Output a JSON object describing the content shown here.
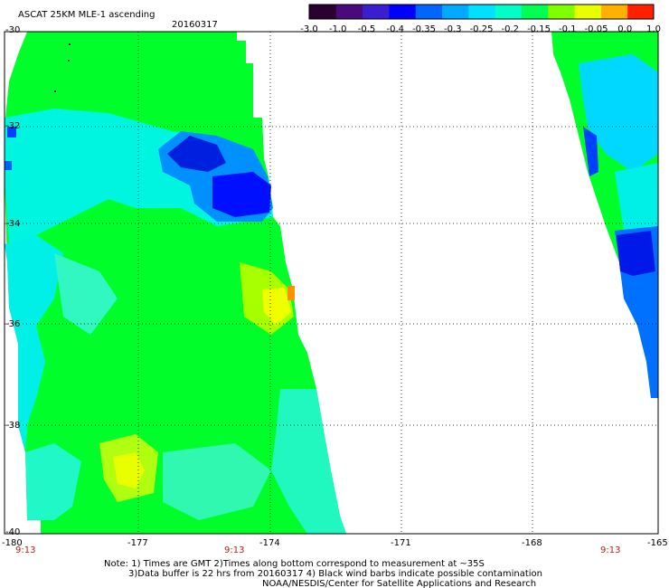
{
  "header": {
    "title": "ASCAT 25KM MLE-1 ascending",
    "date": "20160317"
  },
  "colorbar": {
    "tick_labels": [
      "-3.0",
      "-1.0",
      "-0.5",
      "-0.4",
      "-0.35",
      "-0.3",
      "-0.25",
      "-0.2",
      "-0.15",
      "-0.1",
      "-0.05",
      "0.0",
      "1.0"
    ],
    "colors": [
      "#2a0030",
      "#4b0a7a",
      "#3a1fd0",
      "#0000ff",
      "#0066ff",
      "#00aaff",
      "#00e0ff",
      "#00ffc8",
      "#00ff50",
      "#80ff00",
      "#e8ff00",
      "#ffb000",
      "#ff2000"
    ]
  },
  "axes": {
    "lat_labels": [
      "-30",
      "-32",
      "-34",
      "-36",
      "-38",
      "-40"
    ],
    "lon_labels": [
      "-180",
      "-177",
      "-174",
      "-171",
      "-168",
      "-165"
    ]
  },
  "time_labels": [
    "9:13",
    "9:13",
    "9:13"
  ],
  "notes": {
    "line1": "Note: 1) Times are GMT 2)Times along bottom correspond to measurement at ~35S",
    "line2": "3)Data buffer is 22 hrs from 20160317 4) Black wind barbs indicate possible contamination",
    "line3": "NOAA/NESDIS/Center for Satellite Applications and Research"
  },
  "palette": {
    "green": "#00ff2a",
    "light_green": "#40ff70",
    "yellow_green": "#a0ff00",
    "cyan": "#00ffe0",
    "light_blue": "#00c8ff",
    "mid_blue": "#0080ff",
    "blue": "#0030ff",
    "dark_blue": "#0000d0",
    "orange": "#ff9000",
    "yellow": "#f0ff00",
    "label_red": "#b22222"
  }
}
